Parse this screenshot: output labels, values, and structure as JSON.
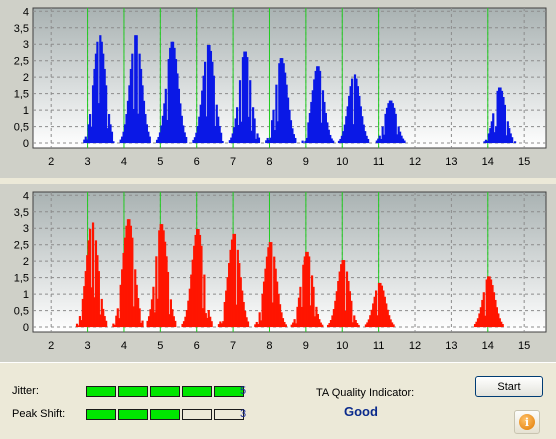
{
  "colors": {
    "panel_bg": "#cfd0c8",
    "plot_bg_top": "#a9b2b2",
    "plot_bg_bottom": "#ffffff",
    "grid": "#8c8c8c",
    "marker": "#22cc22",
    "top_bars": "#0a18e6",
    "bottom_bars": "#ff1500",
    "meter_on": "#00e600"
  },
  "chart_data": [
    {
      "type": "bar",
      "x_ticks": [
        "2",
        "3",
        "4",
        "5",
        "6",
        "7",
        "8",
        "9",
        "10",
        "11",
        "12",
        "13",
        "14",
        "15"
      ],
      "y_ticks": [
        "0",
        "0,5",
        "1",
        "1,5",
        "2",
        "2,5",
        "3",
        "3,5",
        "4"
      ],
      "xlim": [
        1.5,
        15.6
      ],
      "ylim": [
        -0.15,
        4.1
      ],
      "grid": true,
      "marker_lines": [
        3,
        4,
        5,
        6,
        7,
        8,
        9,
        10,
        11,
        14
      ],
      "peaks": [
        {
          "center": 3.3,
          "height": 3.3
        },
        {
          "center": 4.3,
          "height": 3.3
        },
        {
          "center": 5.3,
          "height": 3.1
        },
        {
          "center": 6.3,
          "height": 3.0
        },
        {
          "center": 7.3,
          "height": 2.8
        },
        {
          "center": 8.3,
          "height": 2.6
        },
        {
          "center": 9.3,
          "height": 2.35
        },
        {
          "center": 10.3,
          "height": 2.1
        },
        {
          "center": 11.3,
          "height": 1.3
        },
        {
          "center": 14.3,
          "height": 1.7
        }
      ]
    },
    {
      "type": "bar",
      "x_ticks": [
        "2",
        "3",
        "4",
        "5",
        "6",
        "7",
        "8",
        "9",
        "10",
        "11",
        "12",
        "13",
        "14",
        "15"
      ],
      "y_ticks": [
        "0",
        "0,5",
        "1",
        "1,5",
        "2",
        "2,5",
        "3",
        "3,5",
        "4"
      ],
      "xlim": [
        1.5,
        15.6
      ],
      "ylim": [
        -0.15,
        4.1
      ],
      "grid": true,
      "marker_lines": [
        3,
        4,
        5,
        6,
        7,
        8,
        9,
        10,
        11,
        14
      ],
      "peaks": [
        {
          "center": 3.1,
          "height": 3.2
        },
        {
          "center": 4.1,
          "height": 3.3
        },
        {
          "center": 5.0,
          "height": 3.15
        },
        {
          "center": 6.0,
          "height": 3.0
        },
        {
          "center": 7.0,
          "height": 2.85
        },
        {
          "center": 8.0,
          "height": 2.6
        },
        {
          "center": 9.0,
          "height": 2.3
        },
        {
          "center": 10.0,
          "height": 2.05
        },
        {
          "center": 11.0,
          "height": 1.35
        },
        {
          "center": 14.0,
          "height": 1.55
        }
      ]
    }
  ],
  "status": {
    "jitter_label": "Jitter:",
    "jitter_value": "5",
    "jitter_level": 5,
    "peak_shift_label": "Peak Shift:",
    "peak_shift_value": "3",
    "peak_shift_level": 3,
    "meter_max": 5,
    "quality_label": "TA Quality Indicator:",
    "quality_value": "Good"
  },
  "buttons": {
    "start_label": "Start",
    "info_icon": "info-icon",
    "info_glyph": "i"
  }
}
